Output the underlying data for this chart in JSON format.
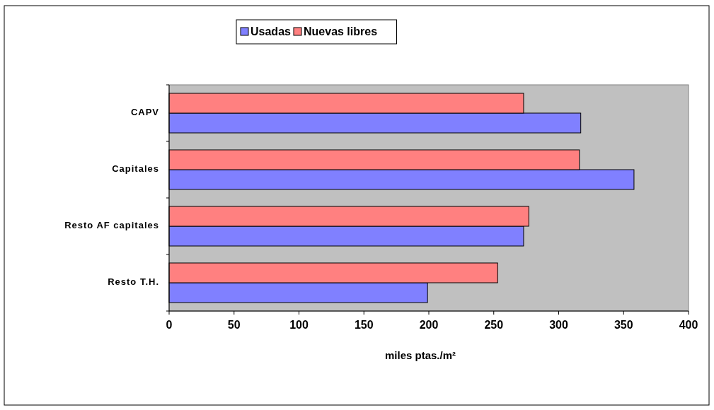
{
  "chart_data": {
    "type": "bar",
    "orientation": "horizontal",
    "xlabel": "miles ptas./m²",
    "categories": [
      "CAPV",
      "Capitales",
      "Resto AF capitales",
      "Resto T.H."
    ],
    "series": [
      {
        "name": "Usadas",
        "color": "#8080ff",
        "values": [
          317,
          358,
          273,
          199
        ]
      },
      {
        "name": "Nuevas libres",
        "color": "#ff8080",
        "values": [
          273,
          316,
          277,
          253
        ]
      }
    ],
    "xlim": [
      0,
      400
    ],
    "xticks": [
      0,
      50,
      100,
      150,
      200,
      250,
      300,
      350,
      400
    ],
    "legend": "top",
    "grid": false
  }
}
